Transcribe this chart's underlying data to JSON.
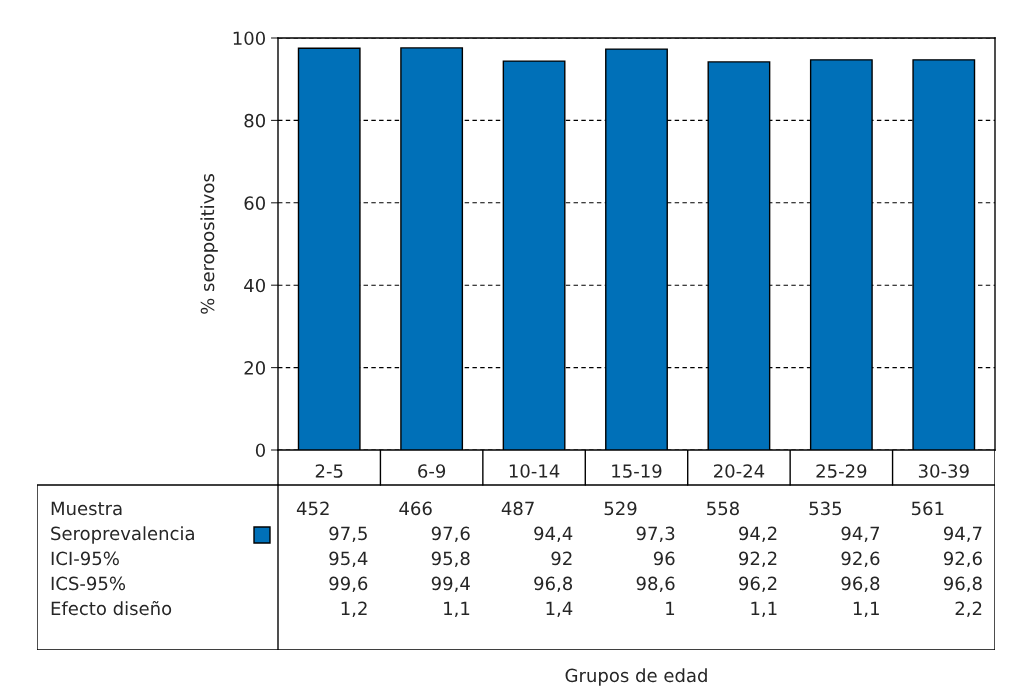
{
  "chart_data": {
    "type": "bar",
    "ylabel": "% seropositivos",
    "categories": [
      "2-5",
      "6-9",
      "10-14",
      "15-19",
      "20-24",
      "25-29",
      "30-39"
    ],
    "series": [
      {
        "name": "Seroprevalencia",
        "color": "#0070b8",
        "values": [
          97.5,
          97.6,
          94.4,
          97.3,
          94.2,
          94.7,
          94.7
        ],
        "value_labels": [
          "97,5",
          "97,6",
          "94,4",
          "97,3",
          "94,2",
          "94,7",
          "94,7"
        ]
      }
    ],
    "ylim": [
      0,
      100
    ],
    "yticks": [
      0,
      20,
      40,
      60,
      80,
      100
    ],
    "grid": "y",
    "line_style": "dashed",
    "annotations": [
      "Muestra",
      "452",
      "466",
      "487",
      "529",
      "558",
      "535",
      "561",
      "ICI-95%",
      "95,4",
      "95,8",
      "92",
      "96",
      "92,2",
      "92,6",
      "92,6",
      "ICS-95%",
      "99,6",
      "99,4",
      "96,8",
      "98,6",
      "96,2",
      "96,8",
      "96,8",
      "Efecto diseño",
      "1,2",
      "1,1",
      "1,4",
      "1",
      "1,1",
      "1,1",
      "2,2",
      "Grupos de edad"
    ]
  }
}
